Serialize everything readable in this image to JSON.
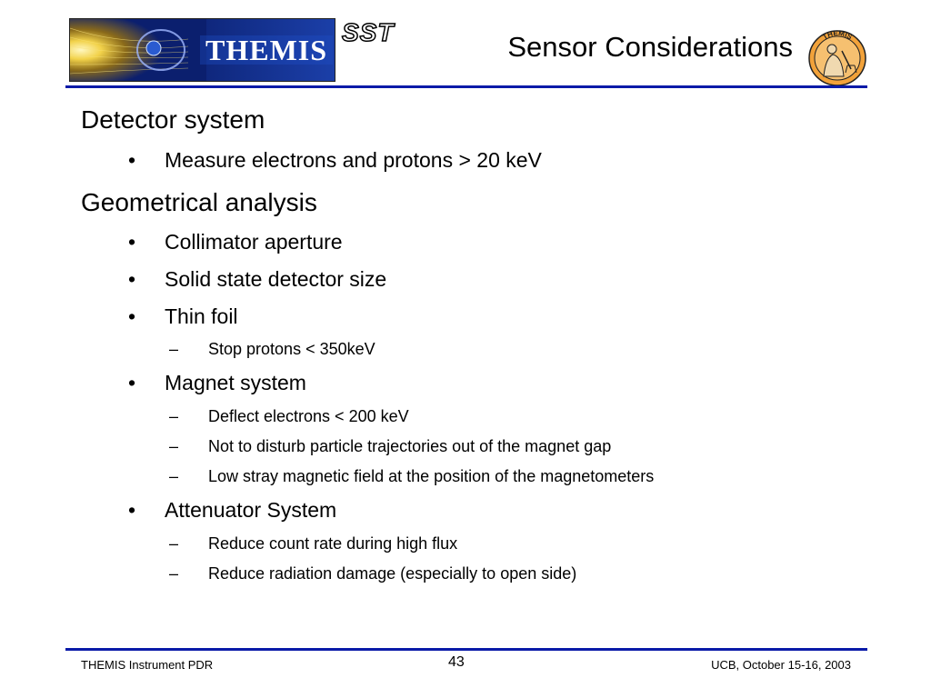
{
  "header": {
    "banner_text": "THEMIS",
    "sst_logo_text": "SST",
    "title": "Sensor Considerations",
    "seal_text": "THEMIS"
  },
  "body": {
    "sections": [
      {
        "heading": "Detector system",
        "items": [
          {
            "text": "Measure electrons and protons  > 20 keV",
            "subitems": []
          }
        ]
      },
      {
        "heading": "Geometrical analysis",
        "items": [
          {
            "text": "Collimator aperture",
            "subitems": []
          },
          {
            "text": "Solid state detector size",
            "subitems": []
          },
          {
            "text": "Thin foil",
            "subitems": [
              "Stop protons  < 350keV"
            ]
          },
          {
            "text": "Magnet system",
            "subitems": [
              "Deflect electrons  < 200 keV",
              "Not to disturb particle trajectories out of the magnet gap",
              "Low stray magnetic field at the position of the magnetometers"
            ]
          },
          {
            "text": "Attenuator System",
            "subitems": [
              "Reduce count rate during high flux",
              "Reduce radiation damage (especially to open side)"
            ]
          }
        ]
      }
    ],
    "bullet_symbol": "•",
    "dash_symbol": "–"
  },
  "footer": {
    "left": "THEMIS Instrument PDR",
    "page_number": "43",
    "right": "UCB, October 15-16, 2003"
  },
  "colors": {
    "rule": "#0a1aa8",
    "banner_sky": "#0b1f6e",
    "banner_glow": "#f2d24a",
    "seal_fill": "#f2a23a"
  }
}
